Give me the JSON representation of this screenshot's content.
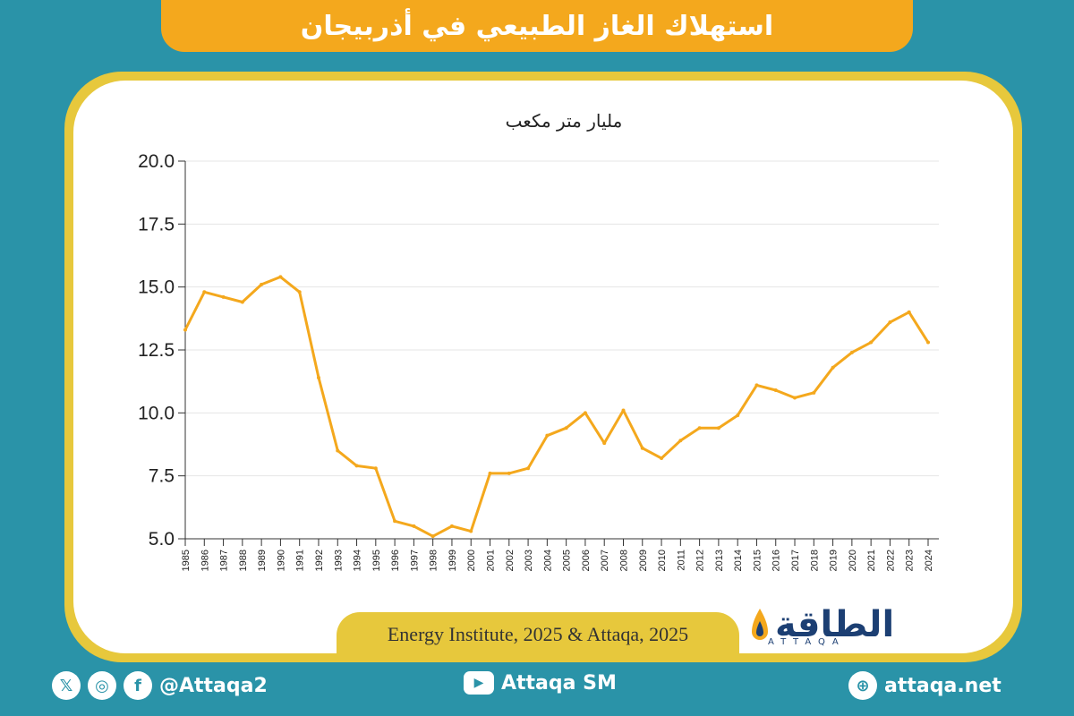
{
  "title": "استهلاك الغاز الطبيعي في أذربيجان",
  "unit_label": "مليار متر مكعب",
  "source": "Energy Institute, 2025 & Attaqa, 2025",
  "logo": {
    "ar": "الطاقة",
    "en": "ATTAQA"
  },
  "social": {
    "handle": "@Attaqa2",
    "youtube": "Attaqa SM",
    "website": "attaqa.net",
    "icons": [
      "x-icon",
      "instagram-icon",
      "facebook-icon",
      "youtube-icon",
      "globe-icon"
    ]
  },
  "colors": {
    "line": "#f4a81d",
    "background": "#2a93a8",
    "banner": "#f4a81d",
    "border": "#e7c83c",
    "brand": "#1c3f73"
  },
  "chart_data": {
    "type": "line",
    "title": "استهلاك الغاز الطبيعي في أذربيجان",
    "ylabel": "مليار متر مكعب",
    "xlabel": "",
    "ylim": [
      5.0,
      20.0
    ],
    "yticks": [
      "5.0",
      "7.5",
      "10.0",
      "12.5",
      "15.0",
      "17.5",
      "20.0"
    ],
    "grid": true,
    "x": [
      "1985",
      "1986",
      "1987",
      "1988",
      "1989",
      "1990",
      "1991",
      "1992",
      "1993",
      "1994",
      "1995",
      "1996",
      "1997",
      "1998",
      "1999",
      "2000",
      "2001",
      "2002",
      "2003",
      "2004",
      "2005",
      "2006",
      "2007",
      "2008",
      "2009",
      "2010",
      "2011",
      "2012",
      "2013",
      "2014",
      "2015",
      "2016",
      "2017",
      "2018",
      "2019",
      "2020",
      "2021",
      "2022",
      "2023",
      "2024"
    ],
    "series": [
      {
        "values": [
          13.3,
          14.8,
          14.6,
          14.4,
          15.1,
          15.4,
          14.8,
          11.4,
          8.5,
          7.9,
          7.8,
          5.7,
          5.5,
          5.1,
          5.5,
          5.3,
          7.6,
          7.6,
          7.8,
          9.1,
          9.4,
          10.0,
          8.8,
          10.1,
          8.6,
          8.2,
          8.9,
          9.4,
          9.4,
          9.9,
          11.1,
          10.9,
          10.6,
          10.8,
          11.8,
          12.4,
          12.8,
          13.6,
          14.0,
          12.8
        ]
      }
    ]
  }
}
